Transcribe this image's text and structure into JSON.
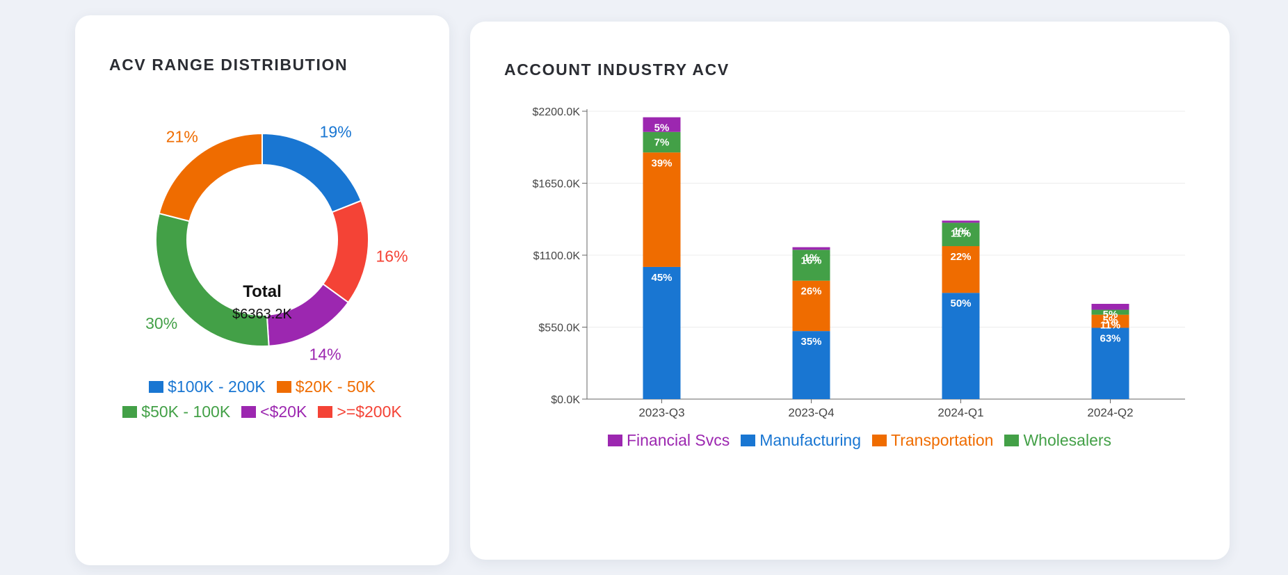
{
  "colors": {
    "blue": "#1976d2",
    "orange": "#ef6c00",
    "green": "#43a047",
    "purple": "#9c27b0",
    "red": "#f44336",
    "background": "#eef1f7",
    "card": "#ffffff"
  },
  "left_card": {
    "title": "ACV RANGE DISTRIBUTION",
    "center_label": "Total",
    "center_value": "$6363.2K"
  },
  "right_card": {
    "title": "ACCOUNT INDUSTRY ACV"
  },
  "chart_data": [
    {
      "type": "pie",
      "variant": "donut",
      "title": "ACV RANGE DISTRIBUTION",
      "total_label": "Total",
      "total_value": "$6363.2K",
      "slices": [
        {
          "label": "$100K - 200K",
          "value": 19,
          "value_label": "19%",
          "color": "#1976d2"
        },
        {
          "label": ">=$200K",
          "value": 16,
          "value_label": "16%",
          "color": "#f44336"
        },
        {
          "label": "<$20K",
          "value": 14,
          "value_label": "14%",
          "color": "#9c27b0"
        },
        {
          "label": "$50K - 100K",
          "value": 30,
          "value_label": "30%",
          "color": "#43a047"
        },
        {
          "label": "$20K - 50K",
          "value": 21,
          "value_label": "21%",
          "color": "#ef6c00"
        }
      ],
      "legend": [
        {
          "label": "$100K - 200K",
          "color": "#1976d2"
        },
        {
          "label": "$20K - 50K",
          "color": "#ef6c00"
        },
        {
          "label": "$50K - 100K",
          "color": "#43a047"
        },
        {
          "label": "<$20K",
          "color": "#9c27b0"
        },
        {
          "label": ">=$200K",
          "color": "#f44336"
        }
      ],
      "legend_position": "bottom"
    },
    {
      "type": "bar",
      "stacked": true,
      "title": "ACCOUNT INDUSTRY ACV",
      "categories": [
        "2023-Q3",
        "2023-Q4",
        "2024-Q1",
        "2024-Q2"
      ],
      "ylim": [
        0,
        2200
      ],
      "yticks": [
        0,
        550,
        1100,
        1650,
        2200
      ],
      "ytick_labels": [
        "$0.0K",
        "$550.0K",
        "$1100.0K",
        "$1650.0K",
        "$2200.0K"
      ],
      "grid": true,
      "legend_position": "bottom",
      "series": [
        {
          "name": "Manufacturing",
          "color": "#1976d2",
          "values": [
            1010,
            520,
            812,
            545
          ],
          "labels": [
            "45%",
            "35%",
            "50%",
            "63%"
          ]
        },
        {
          "name": "Transportation",
          "color": "#ef6c00",
          "values": [
            875,
            385,
            357,
            100
          ],
          "labels": [
            "39%",
            "26%",
            "22%",
            "11%"
          ]
        },
        {
          "name": "Wholesalers",
          "color": "#43a047",
          "values": [
            157,
            236,
            179,
            38
          ],
          "labels": [
            "7%",
            "16%",
            "11%",
            "5%"
          ]
        },
        {
          "name": "Financial Svcs",
          "color": "#9c27b0",
          "values": [
            112,
            20,
            16,
            45
          ],
          "labels": [
            "5%",
            "1%",
            "1%",
            "5%"
          ]
        }
      ],
      "legend": [
        {
          "label": "Financial Svcs",
          "color": "#9c27b0"
        },
        {
          "label": "Manufacturing",
          "color": "#1976d2"
        },
        {
          "label": "Transportation",
          "color": "#ef6c00"
        },
        {
          "label": "Wholesalers",
          "color": "#43a047"
        }
      ]
    }
  ]
}
